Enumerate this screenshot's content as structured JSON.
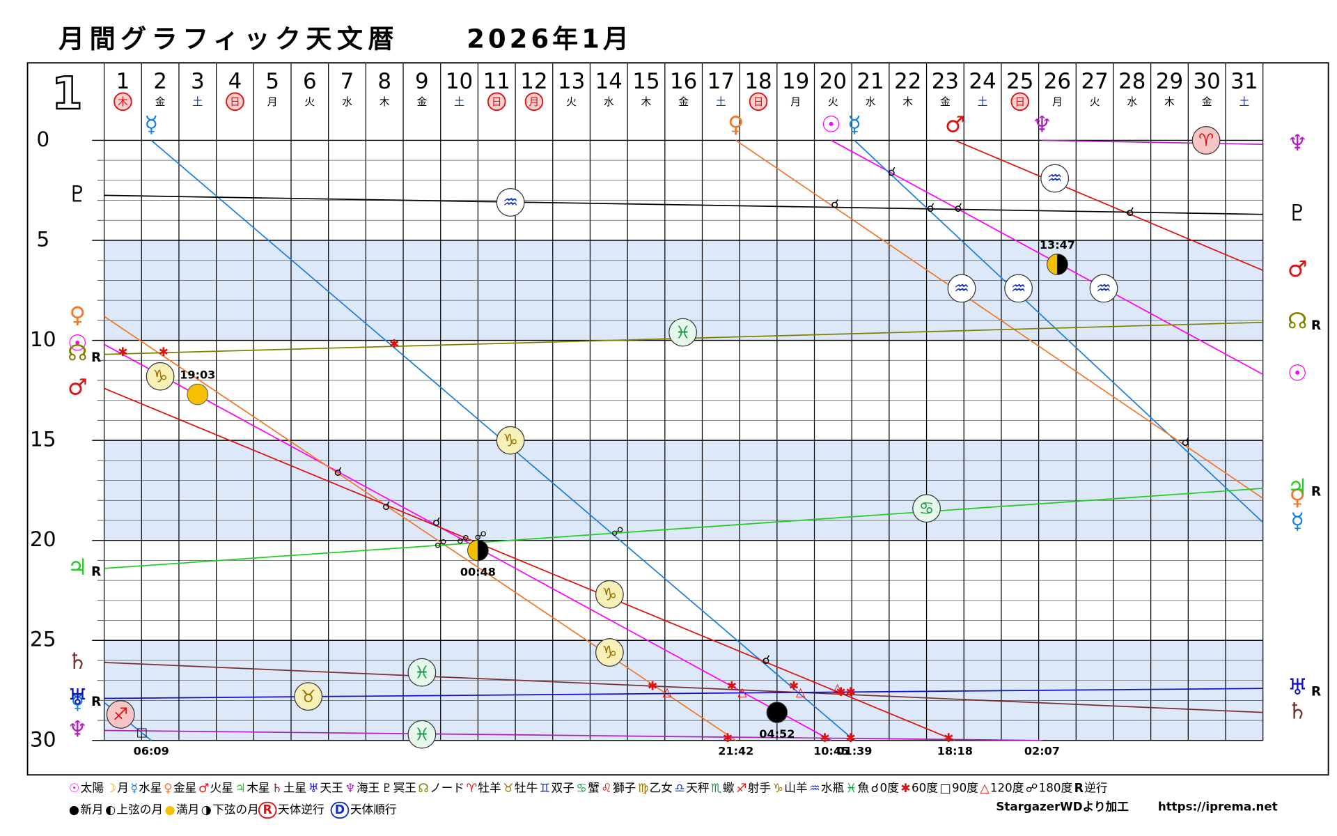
{
  "chart_data": {
    "type": "line",
    "title": "月間グラフィック天文暦",
    "subtitle": "2026年1月",
    "month_label": "1",
    "xlim": [
      0,
      31
    ],
    "ylim": [
      0,
      30
    ],
    "yticks": [
      0,
      5,
      10,
      15,
      20,
      25,
      30
    ],
    "grid": true,
    "days": [
      {
        "day": "1",
        "weekday": "木",
        "holiday": true
      },
      {
        "day": "2",
        "weekday": "金",
        "holiday": false
      },
      {
        "day": "3",
        "weekday": "土",
        "holiday": false
      },
      {
        "day": "4",
        "weekday": "日",
        "holiday": true
      },
      {
        "day": "5",
        "weekday": "月",
        "holiday": false
      },
      {
        "day": "6",
        "weekday": "火",
        "holiday": false
      },
      {
        "day": "7",
        "weekday": "水",
        "holiday": false
      },
      {
        "day": "8",
        "weekday": "木",
        "holiday": false
      },
      {
        "day": "9",
        "weekday": "金",
        "holiday": false
      },
      {
        "day": "10",
        "weekday": "土",
        "holiday": false
      },
      {
        "day": "11",
        "weekday": "日",
        "holiday": true
      },
      {
        "day": "12",
        "weekday": "月",
        "holiday": true
      },
      {
        "day": "13",
        "weekday": "火",
        "holiday": false
      },
      {
        "day": "14",
        "weekday": "水",
        "holiday": false
      },
      {
        "day": "15",
        "weekday": "木",
        "holiday": false
      },
      {
        "day": "16",
        "weekday": "金",
        "holiday": false
      },
      {
        "day": "17",
        "weekday": "土",
        "holiday": false
      },
      {
        "day": "18",
        "weekday": "日",
        "holiday": true
      },
      {
        "day": "19",
        "weekday": "月",
        "holiday": false
      },
      {
        "day": "20",
        "weekday": "火",
        "holiday": false
      },
      {
        "day": "21",
        "weekday": "水",
        "holiday": false
      },
      {
        "day": "22",
        "weekday": "木",
        "holiday": false
      },
      {
        "day": "23",
        "weekday": "金",
        "holiday": false
      },
      {
        "day": "24",
        "weekday": "土",
        "holiday": false
      },
      {
        "day": "25",
        "weekday": "日",
        "holiday": true
      },
      {
        "day": "26",
        "weekday": "月",
        "holiday": false
      },
      {
        "day": "27",
        "weekday": "火",
        "holiday": false
      },
      {
        "day": "28",
        "weekday": "水",
        "holiday": false
      },
      {
        "day": "29",
        "weekday": "木",
        "holiday": false
      },
      {
        "day": "30",
        "weekday": "金",
        "holiday": false
      },
      {
        "day": "31",
        "weekday": "土",
        "holiday": false
      }
    ],
    "series": [
      {
        "symbol": "☉",
        "color": "#ff00ff",
        "x": [
          0,
          19.45,
          null,
          19.45,
          31
        ],
        "values": [
          10.2,
          30,
          null,
          0,
          11.7
        ]
      },
      {
        "symbol": "☿",
        "color": "#1a7fe0",
        "x": [
          0,
          1.26,
          null,
          1.26,
          20.07,
          null,
          20.07,
          31
        ],
        "values": [
          28.1,
          30,
          null,
          0,
          30,
          null,
          0,
          19.1
        ]
      },
      {
        "symbol": "♀",
        "color": "#f07828",
        "x": [
          0,
          16.9,
          null,
          16.9,
          31
        ],
        "values": [
          8.8,
          30,
          null,
          0,
          17.9
        ]
      },
      {
        "symbol": "♂",
        "color": "#e01010",
        "x": [
          0,
          22.76,
          null,
          22.76,
          31
        ],
        "values": [
          12.4,
          30,
          null,
          0,
          6.5
        ]
      },
      {
        "symbol": "♃",
        "color": "#22cc22",
        "retrograde": "R",
        "x": [
          0,
          31
        ],
        "values": [
          21.4,
          17.4
        ]
      },
      {
        "symbol": "♄",
        "color": "#7a3030",
        "x": [
          0,
          31
        ],
        "values": [
          26.1,
          28.6
        ]
      },
      {
        "symbol": "♅",
        "color": "#1010c8",
        "retrograde": "R",
        "x": [
          0,
          31
        ],
        "values": [
          27.9,
          27.4
        ]
      },
      {
        "symbol": "♆",
        "color": "#b020c0",
        "x": [
          0,
          25.09,
          null,
          25.09,
          31
        ],
        "values": [
          29.5,
          30,
          null,
          0,
          0.2
        ]
      },
      {
        "symbol": "♇",
        "color": "#000000",
        "x": [
          0,
          31
        ],
        "values": [
          2.75,
          3.7
        ]
      },
      {
        "symbol": "☊",
        "color": "#808000",
        "retrograde": "R",
        "x": [
          0,
          31
        ],
        "values": [
          10.7,
          9.1
        ]
      }
    ],
    "moon_phases": [
      {
        "phase": "full",
        "time": "19:03",
        "x": 2.5,
        "value": 12.7
      },
      {
        "phase": "last_quarter",
        "time": "00:48",
        "x": 10.0,
        "value": 20.5
      },
      {
        "phase": "new",
        "time": "04:52",
        "x": 18.0,
        "value": 28.6
      },
      {
        "phase": "first_quarter",
        "time": "13:47",
        "x": 25.5,
        "value": 6.2
      }
    ],
    "sign_markers": [
      {
        "symbol": "♐",
        "x": 0.44,
        "value": 28.7,
        "color": "#e01010",
        "fill": "#f6c6c6"
      },
      {
        "symbol": "♑",
        "x": 1.5,
        "value": 11.8,
        "color": "#a07000",
        "fill": "#f7f0b8"
      },
      {
        "symbol": "♉",
        "x": 5.46,
        "value": 27.8,
        "color": "#a07000",
        "fill": "#f7f0b8"
      },
      {
        "symbol": "♓",
        "x": 8.5,
        "value": 26.6,
        "color": "#119944",
        "fill": "#e6f7ec"
      },
      {
        "symbol": "♓",
        "x": 8.5,
        "value": 29.7,
        "color": "#119944",
        "fill": "#e6f7ec"
      },
      {
        "symbol": "♒",
        "x": 10.87,
        "value": 3.1,
        "color": "#1030c0",
        "fill": "#ffffff"
      },
      {
        "symbol": "♑",
        "x": 10.87,
        "value": 15.0,
        "color": "#a07000",
        "fill": "#f7f0b8"
      },
      {
        "symbol": "♑",
        "x": 13.52,
        "value": 22.7,
        "color": "#a07000",
        "fill": "#f7f0b8"
      },
      {
        "symbol": "♑",
        "x": 13.52,
        "value": 25.6,
        "color": "#a07000",
        "fill": "#f7f0b8"
      },
      {
        "symbol": "♓",
        "x": 15.48,
        "value": 9.6,
        "color": "#119944",
        "fill": "#e6f7ec"
      },
      {
        "symbol": "♋",
        "x": 22.0,
        "value": 18.4,
        "color": "#119944",
        "fill": "#e6f7ec"
      },
      {
        "symbol": "♒",
        "x": 22.94,
        "value": 7.4,
        "color": "#1030c0",
        "fill": "#ffffff"
      },
      {
        "symbol": "♒",
        "x": 24.46,
        "value": 7.4,
        "color": "#1030c0",
        "fill": "#ffffff"
      },
      {
        "symbol": "♒",
        "x": 25.43,
        "value": 1.9,
        "color": "#1030c0",
        "fill": "#ffffff"
      },
      {
        "symbol": "♒",
        "x": 26.74,
        "value": 7.4,
        "color": "#1030c0",
        "fill": "#ffffff"
      },
      {
        "symbol": "♈",
        "x": 29.48,
        "value": 0,
        "color": "#e01010",
        "fill": "#f6c6c6"
      }
    ],
    "aspects": [
      {
        "symbol": "☌",
        "color": "#000000",
        "x": 6.26,
        "value": 16.6
      },
      {
        "symbol": "☌",
        "color": "#000000",
        "x": 7.55,
        "value": 18.3
      },
      {
        "symbol": "☌",
        "color": "#000000",
        "x": 8.89,
        "value": 19.1
      },
      {
        "symbol": "☌",
        "color": "#000000",
        "x": 17.71,
        "value": 26.0
      },
      {
        "symbol": "☌",
        "color": "#000000",
        "x": 19.55,
        "value": 3.2
      },
      {
        "symbol": "☌",
        "color": "#000000",
        "x": 21.07,
        "value": 1.6
      },
      {
        "symbol": "☌",
        "color": "#000000",
        "x": 22.11,
        "value": 3.4
      },
      {
        "symbol": "☌",
        "color": "#000000",
        "x": 22.85,
        "value": 3.4
      },
      {
        "symbol": "☌",
        "color": "#000000",
        "x": 27.45,
        "value": 3.6
      },
      {
        "symbol": "☌",
        "color": "#000000",
        "x": 28.93,
        "value": 15.1
      },
      {
        "symbol": "☍",
        "color": "#000000",
        "x": 9.0,
        "value": 20.2
      },
      {
        "symbol": "☍",
        "color": "#000000",
        "x": 9.6,
        "value": 20.0
      },
      {
        "symbol": "☍",
        "color": "#000000",
        "x": 10.07,
        "value": 19.8
      },
      {
        "symbol": "☍",
        "color": "#000000",
        "x": 13.73,
        "value": 19.6
      },
      {
        "symbol": "✱",
        "color": "#e01010",
        "x": 0.5,
        "value": 10.6
      },
      {
        "symbol": "✱",
        "color": "#e01010",
        "x": 1.59,
        "value": 10.6
      },
      {
        "symbol": "✱",
        "color": "#e01010",
        "x": 7.76,
        "value": 10.2
      },
      {
        "symbol": "✱",
        "color": "#e01010",
        "x": 14.67,
        "value": 27.3
      },
      {
        "symbol": "✱",
        "color": "#e01010",
        "x": 16.79,
        "value": 27.3
      },
      {
        "symbol": "✱",
        "color": "#e01010",
        "x": 18.45,
        "value": 27.3
      },
      {
        "symbol": "✱",
        "color": "#e01010",
        "x": 19.71,
        "value": 27.6
      },
      {
        "symbol": "✱",
        "color": "#e01010",
        "x": 19.97,
        "value": 27.6
      },
      {
        "symbol": "✱",
        "color": "#e01010",
        "x": 16.68,
        "value": 29.9
      },
      {
        "symbol": "✱",
        "color": "#e01010",
        "x": 19.28,
        "value": 29.9
      },
      {
        "symbol": "✱",
        "color": "#e01010",
        "x": 19.97,
        "value": 29.9
      },
      {
        "symbol": "✱",
        "color": "#e01010",
        "x": 22.59,
        "value": 29.9
      },
      {
        "symbol": "△",
        "color": "#e01010",
        "x": 15.06,
        "value": 27.6
      },
      {
        "symbol": "△",
        "color": "#e01010",
        "x": 17.07,
        "value": 27.6
      },
      {
        "symbol": "△",
        "color": "#e01010",
        "x": 18.63,
        "value": 27.6
      },
      {
        "symbol": "△",
        "color": "#e01010",
        "x": 19.62,
        "value": 27.4
      },
      {
        "symbol": "□",
        "color": "#000000",
        "x": 1.01,
        "value": 29.6
      }
    ],
    "bottom_times": [
      {
        "label": "06:09",
        "x": 1.26
      },
      {
        "label": "21:42",
        "x": 16.9
      },
      {
        "label": "10:45",
        "x": 19.45
      },
      {
        "label": "01:39",
        "x": 20.07
      },
      {
        "label": "18:18",
        "x": 22.76
      },
      {
        "label": "02:07",
        "x": 25.09
      }
    ],
    "legend": {
      "line1": [
        {
          "symbol": "☉",
          "label": "太陽",
          "color": "#ff00ff"
        },
        {
          "symbol": "☽",
          "label": "月",
          "color": "#e8a000"
        },
        {
          "symbol": "☿",
          "label": "水星",
          "color": "#1a7fe0"
        },
        {
          "symbol": "♀",
          "label": "金星",
          "color": "#f07828"
        },
        {
          "symbol": "♂",
          "label": "火星",
          "color": "#e01010"
        },
        {
          "symbol": "♃",
          "label": "木星",
          "color": "#22cc22"
        },
        {
          "symbol": "♄",
          "label": "土星",
          "color": "#7a3030"
        },
        {
          "symbol": "♅",
          "label": "天王",
          "color": "#1010c8"
        },
        {
          "symbol": "♆",
          "label": "海王",
          "color": "#b020c0"
        },
        {
          "symbol": "♇",
          "label": "冥王",
          "color": "#000000"
        },
        {
          "symbol": "☊",
          "label": "ノード",
          "color": "#808000"
        },
        {
          "symbol": "♈",
          "label": "牡羊",
          "color": "#e01010"
        },
        {
          "symbol": "♉",
          "label": "牡牛",
          "color": "#a07000"
        },
        {
          "symbol": "♊",
          "label": "双子",
          "color": "#1030c0"
        },
        {
          "symbol": "♋",
          "label": "蟹",
          "color": "#119944"
        },
        {
          "symbol": "♌",
          "label": "獅子",
          "color": "#e01010"
        },
        {
          "symbol": "♍",
          "label": "乙女",
          "color": "#a07000"
        },
        {
          "symbol": "♎",
          "label": "天秤",
          "color": "#1030c0"
        },
        {
          "symbol": "♏",
          "label": "蠍",
          "color": "#119944"
        },
        {
          "symbol": "♐",
          "label": "射手",
          "color": "#e01010"
        },
        {
          "symbol": "♑",
          "label": "山羊",
          "color": "#a07000"
        },
        {
          "symbol": "♒",
          "label": "水瓶",
          "color": "#1030c0"
        },
        {
          "symbol": "♓",
          "label": "魚",
          "color": "#119944"
        },
        {
          "symbol": "☌",
          "label": "0度",
          "color": "#000000"
        },
        {
          "symbol": "✱",
          "label": "60度",
          "color": "#e01010"
        },
        {
          "symbol": "□",
          "label": "90度",
          "color": "#000000"
        },
        {
          "symbol": "△",
          "label": "120度",
          "color": "#e01010"
        },
        {
          "symbol": "☍",
          "label": "180度",
          "color": "#000000"
        },
        {
          "symbol": "R",
          "label": "逆行",
          "color": "#000000"
        }
      ],
      "line2": [
        {
          "symbol": "●",
          "label": "新月",
          "color": "#000000"
        },
        {
          "symbol": "◐",
          "label": "上弦の月",
          "color": "#000000"
        },
        {
          "symbol": "●",
          "label": "満月",
          "color": "#f5c000"
        },
        {
          "symbol": "◑",
          "label": "下弦の月",
          "color": "#000000"
        },
        {
          "symbol": "R",
          "label": "天体逆行",
          "color": "#e01010",
          "boxed": true
        },
        {
          "symbol": "D",
          "label": "天体順行",
          "color": "#1030c0",
          "boxed": true
        }
      ],
      "credit": "StargazerWDより加工",
      "url": "https://iprema.net"
    }
  }
}
